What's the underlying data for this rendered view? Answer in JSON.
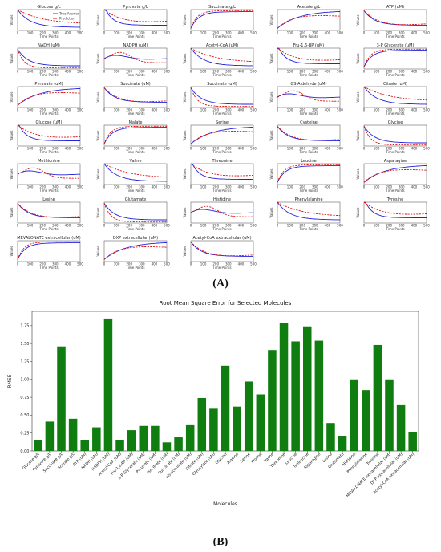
{
  "panel_a": {
    "label_open": "(",
    "label_letter": "A",
    "label_close": ")",
    "y_label": "Values",
    "x_label": "Time Points",
    "legend": [
      "True Answer",
      "Prediction"
    ],
    "true_color": "#2222dd",
    "pred_color": "#dd1111",
    "x_ticks": [
      0,
      100,
      200,
      300,
      400,
      500
    ],
    "subplot_titles": [
      "Glucose g/L",
      "Pyruvate g/L",
      "Succinate g/L",
      "Acetate g/L",
      "ATP (uM)",
      "NADH (uM)",
      "NADPH (uM)",
      "Acetyl-CoA (uM)",
      "Fru-1,6-BP (uM)",
      "3-P Glycerate (uM)",
      "Pyruvate (uM)",
      "Succinate (uM)",
      "Succinate (uM)",
      "GS-Aldehyde (uM)",
      "Citrate (uM)",
      "Glucose (uM)",
      "Malate",
      "Serine",
      "Cysteine",
      "Glycine",
      "Methionine",
      "Valine",
      "Threonine",
      "Leucine",
      "Asparagine",
      "Lysine",
      "Glutamate",
      "Histidine",
      "Phenylalanine",
      "Tyrosine",
      "MEVALONATE extracellular (uM)",
      "DXP extracellular (uM)",
      "Acetyl-CoA extracellular (uM)"
    ]
  },
  "panel_b": {
    "label_open": "(",
    "label_letter": "B",
    "label_close": ")",
    "bar_color": "#0f7d0f"
  },
  "chart_data": [
    {
      "type": "line",
      "title": "",
      "xlabel": "Time Points",
      "ylabel": "Values",
      "xlim": [
        0,
        500
      ],
      "series": [
        {
          "name": "True Answer",
          "x": [
            0,
            100,
            200,
            300,
            400,
            500
          ],
          "values": [
            10,
            3,
            1.2,
            1.0,
            0.9,
            0.9
          ]
        },
        {
          "name": "Prediction",
          "x": [
            0,
            100,
            200,
            300,
            400,
            500
          ],
          "values": [
            10,
            7,
            4.5,
            3.2,
            2.6,
            2.2
          ]
        }
      ],
      "note_series_name_scope": "Legend shown in first subplot; other subplots share same series convention"
    },
    {
      "type": "bar",
      "title": "Root Mean Square Error for Selected Molecules",
      "xlabel": "Molecules",
      "ylabel": "RMSE",
      "ylim": [
        0,
        1.95
      ],
      "yticks": [
        0.0,
        0.25,
        0.5,
        0.75,
        1.0,
        1.25,
        1.5,
        1.75
      ],
      "categories": [
        "Glucose g/L",
        "Pyruvate g/L",
        "Succinate g/L",
        "Acetate g/L",
        "ATP (uM)",
        "NADH (uM)",
        "NADPH (uM)",
        "Acetyl-CoA (uM)",
        "Fru-1,6-BP (uM)",
        "3-P Glycerate (uM)",
        "Pyruvate (uM)",
        "Isocitrate (uM)",
        "Succinate (uM)",
        "cis-aconitate (uM)",
        "Citrate (uM)",
        "Glyoxylate (uM)",
        "Glycine",
        "Alanine",
        "Serine",
        "Proline",
        "Valine",
        "Threonine",
        "Leucine",
        "Isoleucine",
        "Asparagine",
        "Lysine",
        "Glutamate",
        "Histidine",
        "Phenylalanine",
        "Tyrosine",
        "MEVALONATE extracellular (uM)",
        "DXP extracellular (uM)",
        "Acetyl-CoA extracellular (uM)"
      ],
      "values": [
        0.15,
        0.41,
        1.46,
        0.45,
        0.15,
        0.33,
        1.85,
        0.15,
        0.29,
        0.35,
        0.35,
        0.12,
        0.19,
        0.36,
        0.74,
        0.59,
        1.19,
        0.62,
        0.97,
        0.79,
        1.41,
        1.79,
        1.53,
        1.74,
        1.54,
        0.39,
        0.21,
        1.0,
        0.85,
        1.48,
        1.0,
        0.64,
        0.26
      ]
    }
  ]
}
